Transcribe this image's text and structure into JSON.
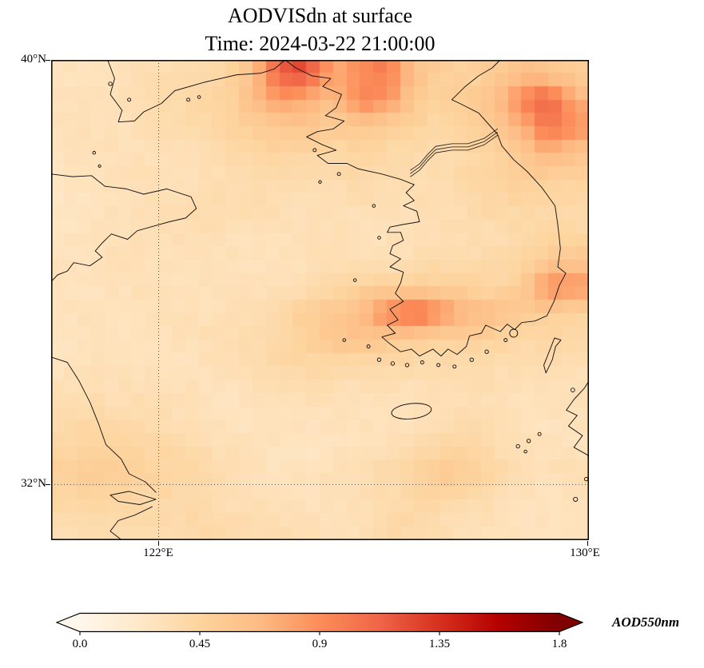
{
  "figure": {
    "title": "AODVISdn at surface",
    "subtitle": "Time: 2024-03-22 21:00:00"
  },
  "axes": {
    "lat_tick_labels": [
      "40°N",
      "32°N"
    ],
    "lon_tick_labels": [
      "122°E",
      "130°E"
    ]
  },
  "colorbar": {
    "label": "AOD550nm",
    "tick_labels": [
      "0.0",
      "0.45",
      "0.9",
      "1.35",
      "1.8"
    ],
    "vmin": 0.0,
    "vmax": 1.8,
    "colormap": "OrRd",
    "extend": "both",
    "stops": [
      "#fff7ec",
      "#fee8c8",
      "#fdd49e",
      "#fdbb84",
      "#fc8d59",
      "#ef6548",
      "#d7301f",
      "#b30000",
      "#7f0000"
    ]
  },
  "chart_data": {
    "type": "heatmap",
    "title": "AODVISdn at surface",
    "time": "2024-03-22 21:00:00",
    "variable": "AODVISdn",
    "units": "AOD550nm",
    "projection": "PlateCarree",
    "extent": {
      "lon_min": 120.0,
      "lon_max": 130.0,
      "lat_min": 30.95,
      "lat_max": 40.0
    },
    "gridline_lons": [
      122,
      130
    ],
    "gridline_lats": [
      32,
      40
    ],
    "value_range": [
      0.0,
      1.8
    ],
    "grid_shape": [
      18,
      20
    ],
    "grid_order": "rows top(40N) to bottom(31N), cols west(120E) to east(130E)",
    "grid": [
      [
        0.3,
        0.28,
        0.3,
        0.33,
        0.36,
        0.38,
        0.42,
        0.6,
        1.15,
        1.25,
        0.75,
        0.9,
        1.0,
        0.62,
        0.5,
        0.46,
        0.52,
        0.62,
        0.56,
        0.5
      ],
      [
        0.28,
        0.3,
        0.32,
        0.35,
        0.38,
        0.4,
        0.46,
        0.62,
        0.85,
        0.72,
        0.62,
        0.95,
        0.88,
        0.55,
        0.46,
        0.52,
        0.62,
        0.95,
        1.15,
        0.72
      ],
      [
        0.3,
        0.32,
        0.3,
        0.33,
        0.36,
        0.38,
        0.42,
        0.5,
        0.56,
        0.6,
        0.52,
        0.56,
        0.5,
        0.46,
        0.4,
        0.46,
        0.56,
        0.72,
        1.05,
        0.88
      ],
      [
        0.28,
        0.3,
        0.32,
        0.3,
        0.32,
        0.35,
        0.38,
        0.4,
        0.45,
        0.42,
        0.4,
        0.45,
        0.4,
        0.38,
        0.36,
        0.4,
        0.46,
        0.56,
        0.72,
        0.6
      ],
      [
        0.26,
        0.28,
        0.3,
        0.32,
        0.3,
        0.32,
        0.34,
        0.36,
        0.38,
        0.36,
        0.35,
        0.38,
        0.36,
        0.34,
        0.36,
        0.42,
        0.46,
        0.5,
        0.48,
        0.45
      ],
      [
        0.25,
        0.27,
        0.3,
        0.32,
        0.34,
        0.36,
        0.38,
        0.36,
        0.34,
        0.32,
        0.33,
        0.34,
        0.33,
        0.32,
        0.34,
        0.36,
        0.4,
        0.42,
        0.4,
        0.38
      ],
      [
        0.26,
        0.28,
        0.3,
        0.32,
        0.34,
        0.33,
        0.32,
        0.3,
        0.3,
        0.31,
        0.32,
        0.3,
        0.3,
        0.32,
        0.33,
        0.34,
        0.36,
        0.38,
        0.42,
        0.4
      ],
      [
        0.28,
        0.3,
        0.32,
        0.3,
        0.3,
        0.32,
        0.3,
        0.28,
        0.3,
        0.32,
        0.34,
        0.32,
        0.3,
        0.34,
        0.38,
        0.36,
        0.38,
        0.42,
        0.52,
        0.56
      ],
      [
        0.3,
        0.28,
        0.3,
        0.32,
        0.3,
        0.28,
        0.3,
        0.32,
        0.3,
        0.34,
        0.38,
        0.45,
        0.5,
        0.46,
        0.5,
        0.46,
        0.42,
        0.52,
        0.92,
        0.85
      ],
      [
        0.28,
        0.3,
        0.28,
        0.3,
        0.32,
        0.3,
        0.32,
        0.34,
        0.4,
        0.5,
        0.56,
        0.66,
        0.95,
        1.12,
        0.9,
        0.7,
        0.64,
        0.55,
        0.5,
        0.45
      ],
      [
        0.27,
        0.28,
        0.3,
        0.28,
        0.3,
        0.32,
        0.34,
        0.36,
        0.4,
        0.46,
        0.56,
        0.6,
        0.55,
        0.5,
        0.46,
        0.5,
        0.45,
        0.4,
        0.42,
        0.4
      ],
      [
        0.28,
        0.3,
        0.32,
        0.3,
        0.28,
        0.3,
        0.32,
        0.36,
        0.4,
        0.42,
        0.4,
        0.38,
        0.36,
        0.38,
        0.36,
        0.38,
        0.36,
        0.34,
        0.36,
        0.34
      ],
      [
        0.32,
        0.34,
        0.32,
        0.34,
        0.32,
        0.3,
        0.28,
        0.3,
        0.32,
        0.34,
        0.32,
        0.3,
        0.32,
        0.3,
        0.32,
        0.34,
        0.32,
        0.3,
        0.32,
        0.3
      ],
      [
        0.38,
        0.4,
        0.38,
        0.36,
        0.34,
        0.3,
        0.28,
        0.26,
        0.28,
        0.3,
        0.28,
        0.3,
        0.28,
        0.3,
        0.34,
        0.36,
        0.32,
        0.3,
        0.28,
        0.3
      ],
      [
        0.42,
        0.46,
        0.44,
        0.42,
        0.4,
        0.36,
        0.32,
        0.3,
        0.28,
        0.26,
        0.28,
        0.3,
        0.32,
        0.36,
        0.4,
        0.42,
        0.36,
        0.32,
        0.3,
        0.28
      ],
      [
        0.48,
        0.52,
        0.5,
        0.46,
        0.44,
        0.4,
        0.34,
        0.3,
        0.28,
        0.3,
        0.32,
        0.34,
        0.38,
        0.44,
        0.56,
        0.52,
        0.4,
        0.34,
        0.32,
        0.35
      ],
      [
        0.42,
        0.44,
        0.4,
        0.42,
        0.38,
        0.36,
        0.34,
        0.32,
        0.3,
        0.28,
        0.3,
        0.32,
        0.36,
        0.4,
        0.42,
        0.38,
        0.34,
        0.3,
        0.28,
        0.3
      ],
      [
        0.34,
        0.36,
        0.38,
        0.36,
        0.38,
        0.4,
        0.38,
        0.36,
        0.34,
        0.32,
        0.3,
        0.32,
        0.4,
        0.38,
        0.34,
        0.32,
        0.3,
        0.28,
        0.3,
        0.28
      ]
    ]
  }
}
